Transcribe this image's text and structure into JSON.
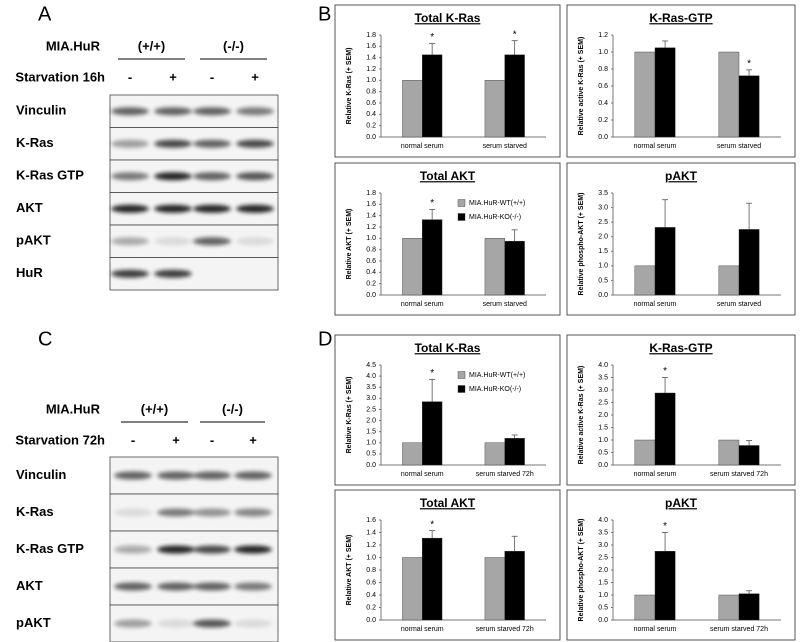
{
  "blots": [
    {
      "label": "A",
      "header": "MIA.HuR",
      "genotypes": [
        "(+/+)",
        "(-/-)"
      ],
      "treatment": "Starvation 16h",
      "lanes": [
        "-",
        "+",
        "-",
        "+"
      ],
      "rows": [
        "Vinculin",
        "K-Ras",
        "K-Ras GTP",
        "AKT",
        "pAKT",
        "HuR"
      ]
    },
    {
      "label": "C",
      "header": "MIA.HuR",
      "genotypes": [
        "(+/+)",
        "(-/-)"
      ],
      "treatment": "Starvation 72h",
      "lanes": [
        "-",
        "+",
        "-",
        "+"
      ],
      "rows": [
        "Vinculin",
        "K-Ras",
        "K-Ras GTP",
        "AKT",
        "pAKT"
      ]
    }
  ],
  "chart_panels": [
    "B",
    "D"
  ],
  "chart_data": [
    {
      "type": "bar",
      "title": "Total K-Ras",
      "ylabel": "Relative K-Ras (+ SEM)",
      "categories": [
        "normal serum",
        "serum starved"
      ],
      "series": [
        {
          "color": "#a6a6a6",
          "values": [
            1,
            1
          ]
        },
        {
          "color": "#000000",
          "values": [
            1.45,
            1.45
          ],
          "errors": [
            0.2,
            0.25
          ],
          "annotations": [
            "*",
            "*"
          ]
        }
      ],
      "ylim": [
        0,
        1.8
      ],
      "yticks": [
        {
          "value": 0,
          "label": "0.0"
        },
        0.2,
        0.4,
        0.6,
        0.8,
        {
          "value": 1,
          "label": "1.0"
        },
        1.2,
        1.4,
        1.6,
        1.8
      ]
    },
    {
      "type": "bar",
      "title": "K-Ras-GTP",
      "ylabel": "Relative active K-Ras (+ SEM)",
      "categories": [
        "normal serum",
        "serum starved"
      ],
      "series": [
        {
          "color": "#a6a6a6",
          "values": [
            1,
            1
          ]
        },
        {
          "color": "#000000",
          "values": [
            1.05,
            0.72
          ],
          "errors": [
            0.08,
            0.07
          ],
          "annotations": [
            null,
            "*"
          ]
        }
      ],
      "ylim": [
        0,
        1.2
      ],
      "yticks": [
        {
          "value": 0,
          "label": "0.0"
        },
        0.2,
        0.4,
        0.6,
        0.8,
        {
          "value": 1,
          "label": "1.0"
        },
        1.2
      ]
    },
    {
      "type": "bar",
      "title": "Total AKT",
      "ylabel": "Relative AKT (+ SEM)",
      "categories": [
        "normal serum",
        "serum starved"
      ],
      "series": [
        {
          "name": "MIA.HuR-WT(+/+)",
          "color": "#a6a6a6",
          "values": [
            1,
            1
          ]
        },
        {
          "name": "MIA.HuR-KO(-/-)",
          "color": "#000000",
          "values": [
            1.33,
            0.95
          ],
          "errors": [
            0.18,
            0.2
          ],
          "annotations": [
            "*",
            null
          ]
        }
      ],
      "legend": "upper right",
      "ylim": [
        0,
        1.8
      ],
      "yticks": [
        {
          "value": 0,
          "label": "0.0"
        },
        0.2,
        0.4,
        0.6,
        0.8,
        {
          "value": 1,
          "label": "1.0"
        },
        1.2,
        1.4,
        1.6,
        1.8
      ]
    },
    {
      "type": "bar",
      "title": "pAKT",
      "ylabel": "Relative phospho-AKT (+ SEM)",
      "categories": [
        "normal serum",
        "serum starved"
      ],
      "series": [
        {
          "color": "#a6a6a6",
          "values": [
            1,
            1
          ]
        },
        {
          "color": "#000000",
          "values": [
            2.32,
            2.25
          ],
          "errors": [
            0.95,
            0.9
          ]
        }
      ],
      "ylim": [
        0,
        3.5
      ],
      "yticks": [
        {
          "value": 0,
          "label": "0.0"
        },
        0.5,
        {
          "value": 1,
          "label": "1.0"
        },
        1.5,
        {
          "value": 2,
          "label": "2.0"
        },
        2.5,
        {
          "value": 3,
          "label": "3.0"
        },
        3.5
      ]
    },
    {
      "type": "bar",
      "title": "Total K-Ras",
      "ylabel": "Relative K-Ras (+ SEM)",
      "categories": [
        "normal serum",
        "serum starved 72h"
      ],
      "series": [
        {
          "name": "MIA.HuR-WT(+/+)",
          "color": "#a6a6a6",
          "values": [
            1,
            1
          ]
        },
        {
          "name": "MIA.HuR-KO(-/-)",
          "color": "#000000",
          "values": [
            2.85,
            1.2
          ],
          "errors": [
            1.0,
            0.15
          ],
          "annotations": [
            "*",
            null
          ]
        }
      ],
      "legend": "upper right",
      "ylim": [
        0,
        4.5
      ],
      "yticks": [
        {
          "value": 0,
          "label": "0.0"
        },
        0.5,
        {
          "value": 1,
          "label": "1.0"
        },
        1.5,
        {
          "value": 2,
          "label": "2.0"
        },
        2.5,
        {
          "value": 3,
          "label": "3.0"
        },
        3.5,
        {
          "value": 4,
          "label": "4.0"
        },
        4.5
      ]
    },
    {
      "type": "bar",
      "title": "K-Ras-GTP",
      "ylabel": "Relative active K-Ras (+ SEM)",
      "categories": [
        "normal serum",
        "serum starved 72h"
      ],
      "series": [
        {
          "color": "#a6a6a6",
          "values": [
            1,
            1
          ]
        },
        {
          "color": "#000000",
          "values": [
            2.88,
            0.78
          ],
          "errors": [
            0.62,
            0.2
          ],
          "annotations": [
            "*",
            null
          ]
        }
      ],
      "ylim": [
        0,
        4
      ],
      "yticks": [
        {
          "value": 0,
          "label": "0.0"
        },
        0.5,
        {
          "value": 1,
          "label": "1.0"
        },
        1.5,
        {
          "value": 2,
          "label": "2.0"
        },
        2.5,
        {
          "value": 3,
          "label": "3.0"
        },
        3.5,
        {
          "value": 4,
          "label": "4.0"
        }
      ]
    },
    {
      "type": "bar",
      "title": "Total AKT",
      "ylabel": "Relative AKT (+ SEM)",
      "categories": [
        "normal serum",
        "serum starved 72h"
      ],
      "series": [
        {
          "color": "#a6a6a6",
          "values": [
            1,
            1
          ]
        },
        {
          "color": "#000000",
          "values": [
            1.31,
            1.1
          ],
          "errors": [
            0.12,
            0.24
          ],
          "annotations": [
            "*",
            null
          ]
        }
      ],
      "ylim": [
        0,
        1.6
      ],
      "yticks": [
        {
          "value": 0,
          "label": "0.0"
        },
        0.2,
        0.4,
        0.6,
        0.8,
        {
          "value": 1,
          "label": "1.0"
        },
        1.2,
        1.4,
        1.6
      ]
    },
    {
      "type": "bar",
      "title": "pAKT",
      "ylabel": "Relative phospho-AKT (+ SEM)",
      "categories": [
        "normal serum",
        "serum starved 72h"
      ],
      "series": [
        {
          "color": "#a6a6a6",
          "values": [
            1,
            1
          ]
        },
        {
          "color": "#000000",
          "values": [
            2.75,
            1.05
          ],
          "errors": [
            0.75,
            0.12
          ],
          "annotations": [
            "*",
            null
          ]
        }
      ],
      "ylim": [
        0,
        4
      ],
      "yticks": [
        {
          "value": 0,
          "label": "0.0"
        },
        0.5,
        {
          "value": 1,
          "label": "1.0"
        },
        1.5,
        {
          "value": 2,
          "label": "2.0"
        },
        2.5,
        {
          "value": 3,
          "label": "3.0"
        },
        3.5,
        {
          "value": 4,
          "label": "4.0"
        }
      ]
    }
  ]
}
